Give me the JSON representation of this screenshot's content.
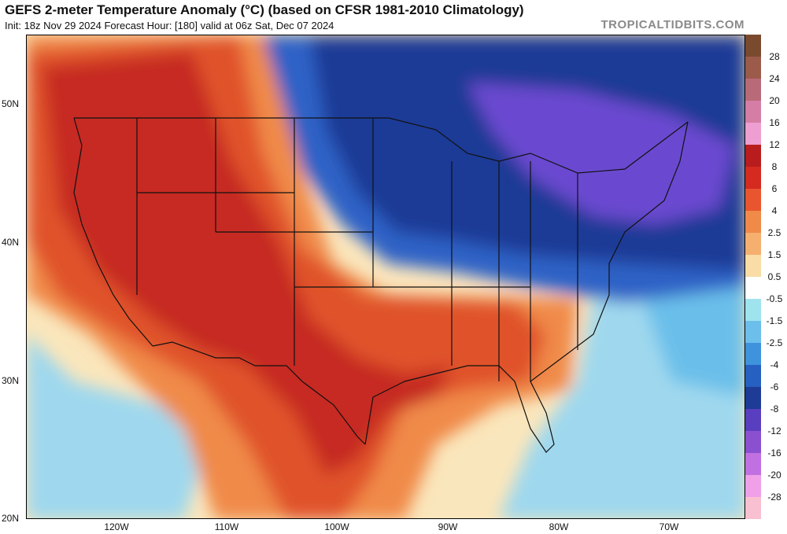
{
  "header": {
    "title": "GEFS 2-meter Temperature Anomaly (°C) (based on CFSR 1981-2010 Climatology)",
    "subtitle": "Init: 18z Nov 29 2024   Forecast Hour: [180]   valid at 06z Sat, Dec 07 2024",
    "brand": "TROPICALTIDBITS.COM"
  },
  "axes": {
    "lat_labels": [
      "50N",
      "40N",
      "30N",
      "20N"
    ],
    "lon_labels": [
      "120W",
      "110W",
      "100W",
      "90W",
      "80W",
      "70W"
    ]
  },
  "legend": {
    "labels": [
      "28",
      "24",
      "20",
      "16",
      "12",
      "8",
      "6",
      "4",
      "2.5",
      "1.5",
      "0.5",
      "-0.5",
      "-1.5",
      "-2.5",
      "-4",
      "-6",
      "-8",
      "-12",
      "-16",
      "-20",
      "-28"
    ],
    "colors": [
      "#7a4a2e",
      "#9c5a4a",
      "#b86a78",
      "#d47ea6",
      "#ee9ed0",
      "#b81c1c",
      "#d42a20",
      "#e8552e",
      "#f08a48",
      "#f5b070",
      "#f9dca6",
      "#ffffff",
      "#9fe3ee",
      "#6bbfea",
      "#3f92dc",
      "#2660c0",
      "#1e3b96",
      "#5a3ec0",
      "#8a50d0",
      "#c070e0",
      "#f0a0e8",
      "#f8c0d0"
    ]
  },
  "map": {
    "colors": {
      "ocean_warm": "#fae6bc",
      "ocean_cool": "#9fd8ee",
      "ocean_cold": "#6bbfea",
      "warm_core": "#c62a22",
      "warm_mid": "#e0532c",
      "warm_edge": "#f08a48",
      "neutral": "#fbf4e4",
      "cold_mid": "#2f62c6",
      "cold_deep": "#1e3b96",
      "cold_purple": "#6a4ad0",
      "border": "#111111"
    }
  }
}
